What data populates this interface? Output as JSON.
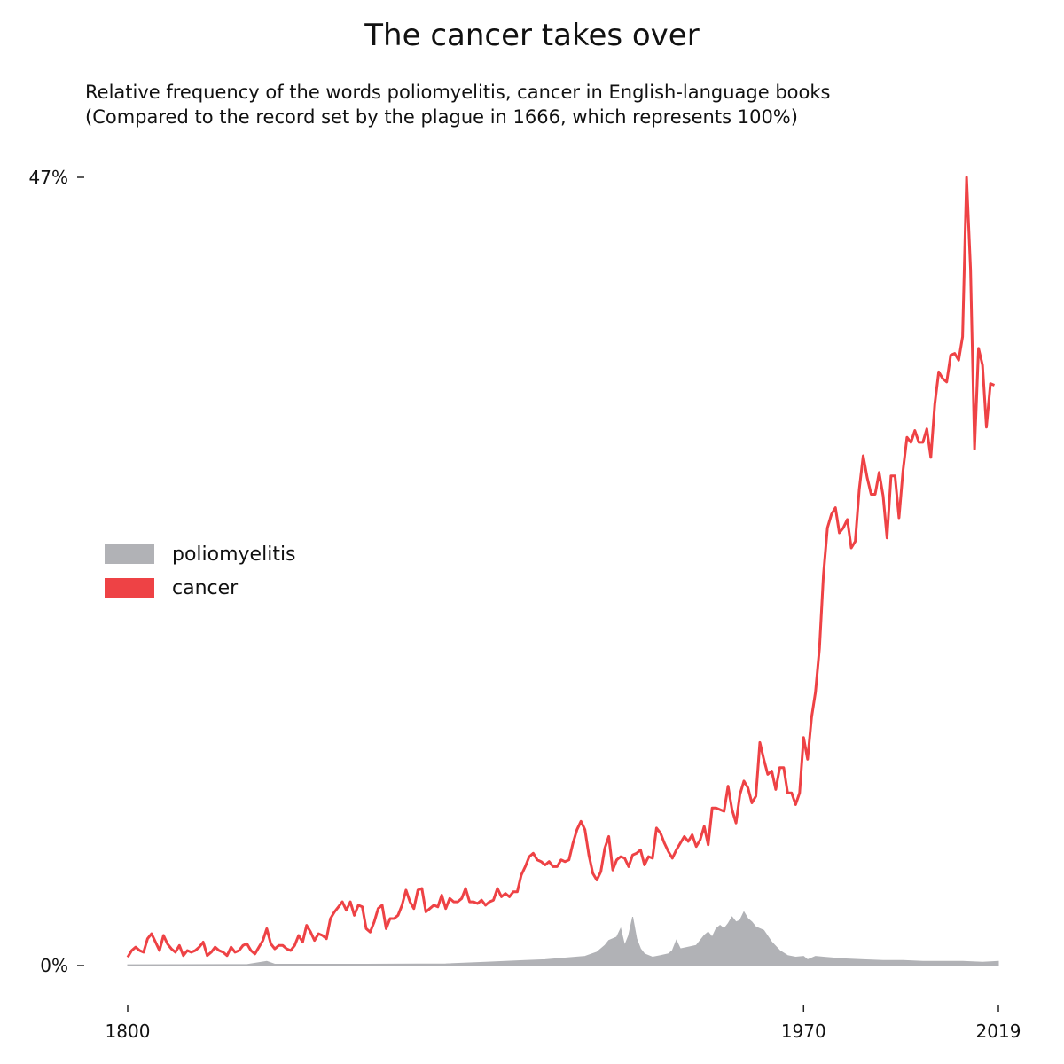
{
  "chart_data": {
    "type": "area",
    "title": "The cancer takes over",
    "subtitle": [
      "Relative frequency of the words poliomyelitis, cancer in English-language books",
      "(Compared to the record set by the plague in 1666, which represents 100%)"
    ],
    "xlabel": "",
    "ylabel": "",
    "xlim": [
      1800,
      2019
    ],
    "ylim": [
      0,
      47
    ],
    "x_ticks": [
      {
        "value": 1800,
        "label": "1800"
      },
      {
        "value": 1970,
        "label": "1970"
      },
      {
        "value": 2019,
        "label": "2019"
      }
    ],
    "y_ticks": [
      {
        "value": 0,
        "label": "0%"
      },
      {
        "value": 47,
        "label": "47%"
      }
    ],
    "grid": false,
    "legend_position": "left-middle",
    "series": [
      {
        "name": "poliomyelitis",
        "style": "filled-area",
        "color": "#b1b2b6",
        "points": [
          [
            1800,
            0.05
          ],
          [
            1830,
            0.06
          ],
          [
            1835,
            0.25
          ],
          [
            1837,
            0.08
          ],
          [
            1860,
            0.08
          ],
          [
            1880,
            0.1
          ],
          [
            1890,
            0.2
          ],
          [
            1900,
            0.3
          ],
          [
            1905,
            0.35
          ],
          [
            1910,
            0.45
          ],
          [
            1915,
            0.55
          ],
          [
            1918,
            0.8
          ],
          [
            1920,
            1.2
          ],
          [
            1921,
            1.5
          ],
          [
            1923,
            1.7
          ],
          [
            1924,
            2.2
          ],
          [
            1925,
            1.2
          ],
          [
            1926,
            1.8
          ],
          [
            1927,
            2.9
          ],
          [
            1928,
            1.6
          ],
          [
            1929,
            1.0
          ],
          [
            1930,
            0.7
          ],
          [
            1932,
            0.5
          ],
          [
            1934,
            0.6
          ],
          [
            1936,
            0.7
          ],
          [
            1937,
            0.9
          ],
          [
            1938,
            1.5
          ],
          [
            1939,
            1.0
          ],
          [
            1941,
            1.1
          ],
          [
            1943,
            1.2
          ],
          [
            1945,
            1.8
          ],
          [
            1946,
            2.0
          ],
          [
            1947,
            1.7
          ],
          [
            1948,
            2.2
          ],
          [
            1949,
            2.4
          ],
          [
            1950,
            2.2
          ],
          [
            1951,
            2.5
          ],
          [
            1952,
            2.9
          ],
          [
            1953,
            2.6
          ],
          [
            1954,
            2.7
          ],
          [
            1955,
            3.2
          ],
          [
            1956,
            2.8
          ],
          [
            1957,
            2.6
          ],
          [
            1958,
            2.3
          ],
          [
            1960,
            2.1
          ],
          [
            1962,
            1.4
          ],
          [
            1964,
            0.9
          ],
          [
            1966,
            0.6
          ],
          [
            1968,
            0.5
          ],
          [
            1970,
            0.55
          ],
          [
            1971,
            0.35
          ],
          [
            1973,
            0.55
          ],
          [
            1975,
            0.5
          ],
          [
            1980,
            0.4
          ],
          [
            1985,
            0.35
          ],
          [
            1990,
            0.3
          ],
          [
            1995,
            0.3
          ],
          [
            2000,
            0.25
          ],
          [
            2005,
            0.25
          ],
          [
            2010,
            0.25
          ],
          [
            2015,
            0.2
          ],
          [
            2019,
            0.25
          ]
        ]
      },
      {
        "name": "cancer",
        "style": "line",
        "color": "#ee4245",
        "points": [
          [
            1800,
            0.5
          ],
          [
            1801,
            0.9
          ],
          [
            1802,
            1.1
          ],
          [
            1803,
            0.9
          ],
          [
            1804,
            0.8
          ],
          [
            1805,
            1.6
          ],
          [
            1806,
            1.9
          ],
          [
            1807,
            1.4
          ],
          [
            1808,
            0.9
          ],
          [
            1809,
            1.8
          ],
          [
            1810,
            1.3
          ],
          [
            1811,
            1.0
          ],
          [
            1812,
            0.8
          ],
          [
            1813,
            1.2
          ],
          [
            1814,
            0.6
          ],
          [
            1815,
            0.9
          ],
          [
            1816,
            0.8
          ],
          [
            1817,
            0.9
          ],
          [
            1818,
            1.1
          ],
          [
            1819,
            1.4
          ],
          [
            1820,
            0.6
          ],
          [
            1821,
            0.8
          ],
          [
            1822,
            1.1
          ],
          [
            1823,
            0.9
          ],
          [
            1824,
            0.8
          ],
          [
            1825,
            0.6
          ],
          [
            1826,
            1.1
          ],
          [
            1827,
            0.8
          ],
          [
            1828,
            0.9
          ],
          [
            1829,
            1.2
          ],
          [
            1830,
            1.3
          ],
          [
            1831,
            0.9
          ],
          [
            1832,
            0.7
          ],
          [
            1833,
            1.1
          ],
          [
            1834,
            1.5
          ],
          [
            1835,
            2.2
          ],
          [
            1836,
            1.3
          ],
          [
            1837,
            1.0
          ],
          [
            1838,
            1.2
          ],
          [
            1839,
            1.2
          ],
          [
            1840,
            1.0
          ],
          [
            1841,
            0.9
          ],
          [
            1842,
            1.2
          ],
          [
            1843,
            1.8
          ],
          [
            1844,
            1.4
          ],
          [
            1845,
            2.4
          ],
          [
            1846,
            2.0
          ],
          [
            1847,
            1.5
          ],
          [
            1848,
            1.9
          ],
          [
            1849,
            1.8
          ],
          [
            1850,
            1.6
          ],
          [
            1851,
            2.8
          ],
          [
            1852,
            3.2
          ],
          [
            1853,
            3.5
          ],
          [
            1854,
            3.8
          ],
          [
            1855,
            3.3
          ],
          [
            1856,
            3.8
          ],
          [
            1857,
            3.0
          ],
          [
            1858,
            3.6
          ],
          [
            1859,
            3.5
          ],
          [
            1860,
            2.2
          ],
          [
            1861,
            2.0
          ],
          [
            1862,
            2.6
          ],
          [
            1863,
            3.4
          ],
          [
            1864,
            3.6
          ],
          [
            1865,
            2.2
          ],
          [
            1866,
            2.8
          ],
          [
            1867,
            2.8
          ],
          [
            1868,
            3.0
          ],
          [
            1869,
            3.6
          ],
          [
            1870,
            4.5
          ],
          [
            1871,
            3.8
          ],
          [
            1872,
            3.4
          ],
          [
            1873,
            4.5
          ],
          [
            1874,
            4.6
          ],
          [
            1875,
            3.2
          ],
          [
            1876,
            3.4
          ],
          [
            1877,
            3.6
          ],
          [
            1878,
            3.5
          ],
          [
            1879,
            4.2
          ],
          [
            1880,
            3.4
          ],
          [
            1881,
            4.0
          ],
          [
            1882,
            3.8
          ],
          [
            1883,
            3.8
          ],
          [
            1884,
            4.0
          ],
          [
            1885,
            4.6
          ],
          [
            1886,
            3.8
          ],
          [
            1887,
            3.8
          ],
          [
            1888,
            3.7
          ],
          [
            1889,
            3.9
          ],
          [
            1890,
            3.6
          ],
          [
            1891,
            3.8
          ],
          [
            1892,
            3.9
          ],
          [
            1893,
            4.6
          ],
          [
            1894,
            4.1
          ],
          [
            1895,
            4.3
          ],
          [
            1896,
            4.1
          ],
          [
            1897,
            4.4
          ],
          [
            1898,
            4.4
          ],
          [
            1899,
            5.4
          ],
          [
            1900,
            5.9
          ],
          [
            1901,
            6.5
          ],
          [
            1902,
            6.7
          ],
          [
            1903,
            6.3
          ],
          [
            1904,
            6.2
          ],
          [
            1905,
            6.0
          ],
          [
            1906,
            6.2
          ],
          [
            1907,
            5.9
          ],
          [
            1908,
            5.9
          ],
          [
            1909,
            6.3
          ],
          [
            1910,
            6.2
          ],
          [
            1911,
            6.3
          ],
          [
            1912,
            7.3
          ],
          [
            1913,
            8.1
          ],
          [
            1914,
            8.6
          ],
          [
            1915,
            8.1
          ],
          [
            1916,
            6.6
          ],
          [
            1917,
            5.5
          ],
          [
            1918,
            5.1
          ],
          [
            1919,
            5.6
          ],
          [
            1920,
            7.0
          ],
          [
            1921,
            7.7
          ],
          [
            1922,
            5.7
          ],
          [
            1923,
            6.3
          ],
          [
            1924,
            6.5
          ],
          [
            1925,
            6.4
          ],
          [
            1926,
            5.9
          ],
          [
            1927,
            6.6
          ],
          [
            1928,
            6.7
          ],
          [
            1929,
            6.9
          ],
          [
            1930,
            6.0
          ],
          [
            1931,
            6.5
          ],
          [
            1932,
            6.4
          ],
          [
            1933,
            8.2
          ],
          [
            1934,
            7.9
          ],
          [
            1935,
            7.3
          ],
          [
            1936,
            6.8
          ],
          [
            1937,
            6.4
          ],
          [
            1938,
            6.9
          ],
          [
            1939,
            7.3
          ],
          [
            1940,
            7.7
          ],
          [
            1941,
            7.4
          ],
          [
            1942,
            7.8
          ],
          [
            1943,
            7.1
          ],
          [
            1944,
            7.5
          ],
          [
            1945,
            8.3
          ],
          [
            1946,
            7.2
          ],
          [
            1947,
            9.4
          ],
          [
            1948,
            9.4
          ],
          [
            1949,
            9.3
          ],
          [
            1950,
            9.2
          ],
          [
            1951,
            10.7
          ],
          [
            1952,
            9.3
          ],
          [
            1953,
            8.5
          ],
          [
            1954,
            10.2
          ],
          [
            1955,
            11.0
          ],
          [
            1956,
            10.6
          ],
          [
            1957,
            9.7
          ],
          [
            1958,
            10.1
          ],
          [
            1959,
            13.3
          ],
          [
            1960,
            12.3
          ],
          [
            1961,
            11.4
          ],
          [
            1962,
            11.6
          ],
          [
            1963,
            10.5
          ],
          [
            1964,
            11.8
          ],
          [
            1965,
            11.8
          ],
          [
            1966,
            10.3
          ],
          [
            1967,
            10.3
          ],
          [
            1968,
            9.6
          ],
          [
            1969,
            10.3
          ],
          [
            1970,
            13.6
          ],
          [
            1971,
            12.3
          ],
          [
            1972,
            14.8
          ],
          [
            1973,
            16.3
          ],
          [
            1974,
            18.9
          ],
          [
            1975,
            23.3
          ],
          [
            1976,
            26.1
          ],
          [
            1977,
            26.9
          ],
          [
            1978,
            27.3
          ],
          [
            1979,
            25.8
          ],
          [
            1980,
            26.1
          ],
          [
            1981,
            26.6
          ],
          [
            1982,
            24.9
          ],
          [
            1983,
            25.3
          ],
          [
            1984,
            28.4
          ],
          [
            1985,
            30.4
          ],
          [
            1986,
            29.1
          ],
          [
            1987,
            28.1
          ],
          [
            1988,
            28.1
          ],
          [
            1989,
            29.4
          ],
          [
            1990,
            28.0
          ],
          [
            1991,
            25.5
          ],
          [
            1992,
            29.2
          ],
          [
            1993,
            29.2
          ],
          [
            1994,
            26.7
          ],
          [
            1995,
            29.5
          ],
          [
            1996,
            31.5
          ],
          [
            1997,
            31.2
          ],
          [
            1998,
            31.9
          ],
          [
            1999,
            31.2
          ],
          [
            2000,
            31.2
          ],
          [
            2001,
            32.0
          ],
          [
            2002,
            30.3
          ],
          [
            2003,
            33.5
          ],
          [
            2004,
            35.4
          ],
          [
            2005,
            35.0
          ],
          [
            2006,
            34.8
          ],
          [
            2007,
            36.4
          ],
          [
            2008,
            36.5
          ],
          [
            2009,
            36.1
          ],
          [
            2010,
            37.5
          ],
          [
            2011,
            47.0
          ],
          [
            2012,
            41.5
          ],
          [
            2013,
            30.8
          ],
          [
            2014,
            36.8
          ],
          [
            2015,
            35.8
          ],
          [
            2016,
            32.1
          ],
          [
            2017,
            34.7
          ],
          [
            2018,
            34.6
          ]
        ]
      }
    ]
  }
}
